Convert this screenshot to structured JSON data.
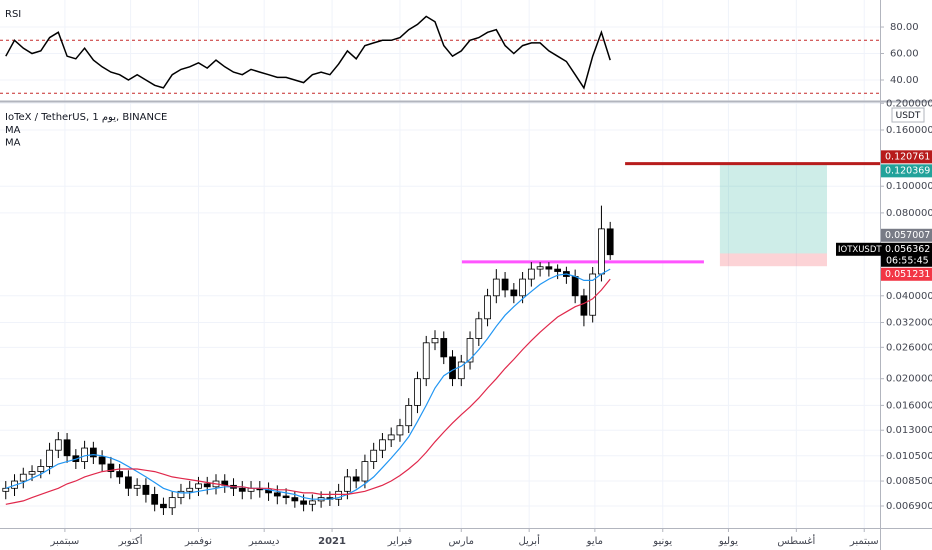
{
  "chart_data": {
    "type": "candlestick",
    "title": "IoTeX / TetherUS, 1 يوم, BINANCE",
    "currency": "USDT",
    "symbol": "IOTXUSDT",
    "countdown": "06:55:45",
    "log_scale": true,
    "grid": true,
    "up_color": "#ffffff",
    "down_color": "#000000",
    "x": [
      4,
      8,
      12,
      16,
      20,
      24,
      28,
      32,
      36,
      40,
      44,
      48,
      52,
      56,
      60,
      64,
      68,
      72,
      76,
      80,
      84,
      88,
      92,
      96,
      100,
      104,
      108,
      112,
      116,
      120,
      124,
      128,
      132,
      136,
      140,
      144,
      148,
      152,
      156,
      160,
      164,
      168,
      172,
      176,
      180,
      184,
      188,
      192,
      196,
      200,
      204,
      208,
      212,
      216,
      220,
      224,
      228,
      232,
      236,
      240,
      244,
      248,
      252,
      256,
      260,
      264,
      268,
      272,
      276,
      280
    ],
    "open": [
      0.0078,
      0.008,
      0.0085,
      0.009,
      0.0092,
      0.0096,
      0.011,
      0.012,
      0.0105,
      0.01,
      0.0112,
      0.0104,
      0.0098,
      0.0092,
      0.0088,
      0.008,
      0.0082,
      0.0076,
      0.007,
      0.0068,
      0.0074,
      0.0078,
      0.008,
      0.0083,
      0.0081,
      0.0085,
      0.0082,
      0.008,
      0.0078,
      0.008,
      0.0079,
      0.0077,
      0.0075,
      0.0074,
      0.0072,
      0.007,
      0.0072,
      0.0074,
      0.0073,
      0.0078,
      0.0088,
      0.0085,
      0.01,
      0.011,
      0.012,
      0.0125,
      0.0135,
      0.016,
      0.02,
      0.027,
      0.028,
      0.024,
      0.02,
      0.023,
      0.028,
      0.033,
      0.04,
      0.046,
      0.042,
      0.04,
      0.046,
      0.05,
      0.051,
      0.05,
      0.049,
      0.047,
      0.04,
      0.034,
      0.048,
      0.07
    ],
    "high": [
      0.0085,
      0.009,
      0.0095,
      0.0097,
      0.0102,
      0.0117,
      0.0128,
      0.0127,
      0.0111,
      0.0119,
      0.0118,
      0.011,
      0.0104,
      0.0098,
      0.0093,
      0.0087,
      0.0087,
      0.0081,
      0.0074,
      0.0078,
      0.0083,
      0.0085,
      0.0088,
      0.0088,
      0.009,
      0.009,
      0.0087,
      0.0085,
      0.0085,
      0.0085,
      0.0084,
      0.0082,
      0.008,
      0.0078,
      0.0076,
      0.0076,
      0.0078,
      0.0078,
      0.0083,
      0.0094,
      0.0094,
      0.0106,
      0.0117,
      0.0127,
      0.0133,
      0.0143,
      0.017,
      0.0212,
      0.0286,
      0.03,
      0.0297,
      0.0254,
      0.0244,
      0.0297,
      0.035,
      0.0424,
      0.05,
      0.0488,
      0.0445,
      0.0488,
      0.053,
      0.053,
      0.053,
      0.052,
      0.051,
      0.0498,
      0.0424,
      0.0509,
      0.085,
      0.0742
    ],
    "low": [
      0.0073,
      0.0075,
      0.008,
      0.0085,
      0.0087,
      0.009,
      0.0103,
      0.0099,
      0.0094,
      0.0094,
      0.0098,
      0.0092,
      0.0087,
      0.0083,
      0.0075,
      0.0075,
      0.0071,
      0.0066,
      0.0064,
      0.0064,
      0.007,
      0.0073,
      0.0075,
      0.0076,
      0.0076,
      0.0077,
      0.0075,
      0.0073,
      0.0073,
      0.0074,
      0.0072,
      0.007,
      0.007,
      0.0068,
      0.0066,
      0.0066,
      0.0068,
      0.0069,
      0.0069,
      0.0073,
      0.008,
      0.008,
      0.0094,
      0.0103,
      0.0113,
      0.0118,
      0.0127,
      0.015,
      0.0188,
      0.0254,
      0.0226,
      0.0188,
      0.0188,
      0.0216,
      0.0263,
      0.031,
      0.0376,
      0.0395,
      0.0376,
      0.0376,
      0.0432,
      0.047,
      0.047,
      0.046,
      0.0442,
      0.0376,
      0.031,
      0.032,
      0.0451,
      0.054
    ],
    "close": [
      0.008,
      0.0085,
      0.009,
      0.0092,
      0.0096,
      0.011,
      0.012,
      0.0105,
      0.01,
      0.0112,
      0.0104,
      0.0098,
      0.0092,
      0.0088,
      0.008,
      0.0082,
      0.0076,
      0.007,
      0.0068,
      0.0074,
      0.0078,
      0.008,
      0.0083,
      0.0081,
      0.0085,
      0.0082,
      0.008,
      0.0078,
      0.008,
      0.0079,
      0.0077,
      0.0075,
      0.0074,
      0.0072,
      0.007,
      0.0072,
      0.0074,
      0.0073,
      0.0078,
      0.0088,
      0.0085,
      0.01,
      0.011,
      0.012,
      0.0125,
      0.0135,
      0.016,
      0.02,
      0.027,
      0.028,
      0.024,
      0.02,
      0.023,
      0.028,
      0.033,
      0.04,
      0.046,
      0.042,
      0.04,
      0.046,
      0.05,
      0.051,
      0.05,
      0.049,
      0.047,
      0.04,
      0.034,
      0.048,
      0.07,
      0.0564
    ],
    "series": [
      {
        "name": "MA",
        "color": "#2196f3",
        "values": [
          0.008,
          0.0082,
          0.0084,
          0.0087,
          0.009,
          0.0094,
          0.0098,
          0.01,
          0.0102,
          0.0105,
          0.0106,
          0.0105,
          0.0103,
          0.01,
          0.0096,
          0.0092,
          0.0088,
          0.0084,
          0.008,
          0.0078,
          0.0077,
          0.0077,
          0.0078,
          0.0079,
          0.008,
          0.0081,
          0.0081,
          0.0081,
          0.008,
          0.008,
          0.0079,
          0.0078,
          0.0077,
          0.0076,
          0.0074,
          0.0073,
          0.0073,
          0.0073,
          0.0074,
          0.0076,
          0.0079,
          0.0083,
          0.0088,
          0.0095,
          0.0103,
          0.0112,
          0.0123,
          0.014,
          0.016,
          0.0185,
          0.0205,
          0.0215,
          0.0222,
          0.0235,
          0.0255,
          0.028,
          0.031,
          0.034,
          0.0365,
          0.039,
          0.0415,
          0.044,
          0.046,
          0.0475,
          0.048,
          0.047,
          0.0455,
          0.0455,
          0.048,
          0.05
        ]
      },
      {
        "name": "MA",
        "color": "#e0284b",
        "values": [
          0.007,
          0.0071,
          0.0072,
          0.0074,
          0.0076,
          0.0078,
          0.008,
          0.0083,
          0.0085,
          0.0088,
          0.009,
          0.0092,
          0.0093,
          0.0094,
          0.0094,
          0.0094,
          0.0093,
          0.0092,
          0.009,
          0.0088,
          0.0087,
          0.0086,
          0.0085,
          0.0084,
          0.0083,
          0.0082,
          0.0081,
          0.0081,
          0.008,
          0.008,
          0.008,
          0.0079,
          0.0079,
          0.0078,
          0.0077,
          0.0077,
          0.0076,
          0.0076,
          0.0076,
          0.0076,
          0.0077,
          0.0078,
          0.008,
          0.0082,
          0.0085,
          0.0089,
          0.0094,
          0.01,
          0.0108,
          0.0118,
          0.0128,
          0.0138,
          0.0148,
          0.0158,
          0.017,
          0.0185,
          0.02,
          0.0218,
          0.0235,
          0.0255,
          0.0275,
          0.0295,
          0.0315,
          0.0335,
          0.035,
          0.0365,
          0.0375,
          0.039,
          0.042,
          0.046
        ]
      }
    ],
    "xlim": [
      1.37,
      403.2
    ],
    "xticks": [
      {
        "value": 31,
        "label": "سبتمبر"
      },
      {
        "value": 61,
        "label": "أكتوبر"
      },
      {
        "value": 92,
        "label": "نوفمبر"
      },
      {
        "value": 122,
        "label": "ديسمبر"
      },
      {
        "value": 153,
        "label": "2021"
      },
      {
        "value": 184,
        "label": "فبراير"
      },
      {
        "value": 212,
        "label": "مارس"
      },
      {
        "value": 243,
        "label": "أبريل"
      },
      {
        "value": 273,
        "label": "مايو"
      },
      {
        "value": 304,
        "label": "يونيو"
      },
      {
        "value": 334,
        "label": "يوليو"
      },
      {
        "value": 365,
        "label": "أغسطس"
      },
      {
        "value": 396,
        "label": "سبتمبر"
      }
    ],
    "ylim": [
      0.00574,
      0.2005
    ],
    "yticks": [
      {
        "value": 0.2,
        "label": "0.200000"
      },
      {
        "value": 0.16,
        "label": "0.160000"
      },
      {
        "value": 0.1,
        "label": "0.100000"
      },
      {
        "value": 0.08,
        "label": "0.080000"
      },
      {
        "value": 0.04,
        "label": "0.040000"
      },
      {
        "value": 0.032,
        "label": "0.032000"
      },
      {
        "value": 0.026,
        "label": "0.026000"
      },
      {
        "value": 0.02,
        "label": "0.020000"
      },
      {
        "value": 0.016,
        "label": "0.016000"
      },
      {
        "value": 0.013,
        "label": "0.013000"
      },
      {
        "value": 0.0105,
        "label": "0.010500"
      },
      {
        "value": 0.0085,
        "label": "0.008500"
      },
      {
        "value": 0.0069,
        "label": "0.006900"
      }
    ],
    "last_price": 0.056362,
    "last_price_color": "#000000",
    "levels": [
      {
        "value": 0.120761,
        "color": "#b71c1c",
        "x": [
          286.8,
          403.2
        ]
      },
      {
        "value": 0.0531,
        "color": "#ff55ff",
        "x": [
          212.3,
          322.8
        ]
      }
    ],
    "position": {
      "x": [
        330.1,
        379
      ],
      "target": 0.120369,
      "entry": 0.057007,
      "stop": 0.051231
    },
    "rsi": {
      "title": "RSI",
      "color": "#000000",
      "values": [
        58,
        70,
        64,
        60,
        62,
        72,
        76,
        58,
        56,
        64,
        55,
        50,
        46,
        44,
        40,
        44,
        40,
        36,
        34,
        44,
        48,
        50,
        53,
        49,
        55,
        50,
        46,
        44,
        48,
        46,
        44,
        42,
        42,
        40,
        38,
        44,
        46,
        44,
        52,
        62,
        56,
        66,
        68,
        70,
        70,
        72,
        78,
        82,
        88,
        84,
        66,
        58,
        62,
        70,
        72,
        76,
        78,
        66,
        60,
        66,
        68,
        68,
        62,
        58,
        54,
        44,
        34,
        58,
        76,
        55
      ],
      "ylim": [
        24.9,
        100.4
      ],
      "yticks": [
        {
          "value": 40,
          "label": "40.00"
        },
        {
          "value": 60,
          "label": "60.00"
        },
        {
          "value": 80,
          "label": "80.00"
        }
      ],
      "bands": [
        70,
        30
      ]
    }
  }
}
